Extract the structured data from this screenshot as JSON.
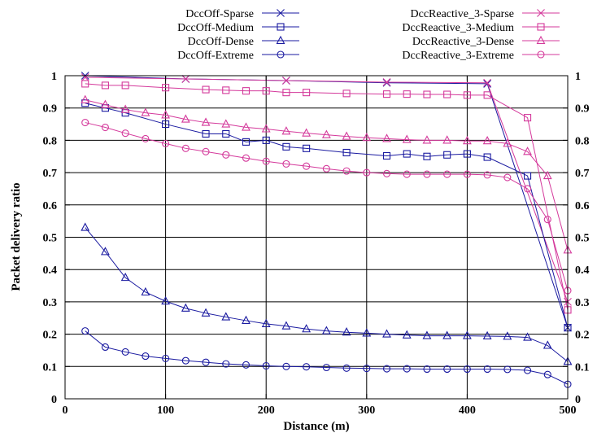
{
  "chart_data": {
    "type": "line",
    "title": "",
    "xlabel": "Distance (m)",
    "ylabel": "Packet delivery ratio",
    "xlim": [
      0,
      500
    ],
    "ylim": [
      0,
      1
    ],
    "xticks": [
      "0",
      "100",
      "200",
      "300",
      "400",
      "500"
    ],
    "xtick_values": [
      0,
      100,
      200,
      300,
      400,
      500
    ],
    "yticks": [
      "0",
      "0.1",
      "0.2",
      "0.3",
      "0.4",
      "0.5",
      "0.6",
      "0.7",
      "0.8",
      "0.9",
      "1"
    ],
    "ytick_values": [
      0,
      0.1,
      0.2,
      0.3,
      0.4,
      0.5,
      0.6,
      0.7,
      0.8,
      0.9,
      1
    ],
    "grid": true,
    "legend_position": "top, two columns, outside plot",
    "colors": {
      "DccOff": "#1a1aa0",
      "DccReactive_3": "#d4399b"
    },
    "series": [
      {
        "name": "DccOff-Sparse",
        "color": "#1a1aa0",
        "marker": "x",
        "x": [
          20,
          120,
          220,
          320,
          420,
          500
        ],
        "y": [
          1.0,
          0.99,
          0.985,
          0.978,
          0.975,
          0.22
        ]
      },
      {
        "name": "DccReactive_3-Sparse",
        "color": "#d4399b",
        "marker": "x",
        "x": [
          20,
          120,
          220,
          320,
          420,
          500
        ],
        "y": [
          0.995,
          0.99,
          0.985,
          0.98,
          0.978,
          0.3
        ]
      },
      {
        "name": "DccOff-Medium",
        "color": "#1a1aa0",
        "marker": "square",
        "x": [
          20,
          40,
          60,
          100,
          140,
          160,
          180,
          200,
          220,
          240,
          280,
          320,
          340,
          360,
          380,
          400,
          420,
          460,
          500
        ],
        "y": [
          0.915,
          0.9,
          0.885,
          0.85,
          0.82,
          0.82,
          0.795,
          0.8,
          0.78,
          0.775,
          0.762,
          0.752,
          0.758,
          0.75,
          0.755,
          0.758,
          0.748,
          0.69,
          0.22
        ]
      },
      {
        "name": "DccReactive_3-Medium",
        "color": "#d4399b",
        "marker": "square",
        "x": [
          20,
          40,
          60,
          100,
          140,
          160,
          180,
          200,
          220,
          240,
          280,
          320,
          340,
          360,
          380,
          400,
          420,
          460,
          500
        ],
        "y": [
          0.975,
          0.97,
          0.97,
          0.963,
          0.957,
          0.955,
          0.953,
          0.953,
          0.948,
          0.948,
          0.945,
          0.943,
          0.943,
          0.942,
          0.942,
          0.94,
          0.94,
          0.87,
          0.275
        ]
      },
      {
        "name": "DccOff-Dense",
        "color": "#1a1aa0",
        "marker": "triangle",
        "x": [
          20,
          40,
          60,
          80,
          100,
          120,
          140,
          160,
          180,
          200,
          220,
          240,
          260,
          280,
          300,
          320,
          340,
          360,
          380,
          400,
          420,
          440,
          460,
          480,
          500
        ],
        "y": [
          0.53,
          0.455,
          0.375,
          0.33,
          0.302,
          0.28,
          0.265,
          0.253,
          0.242,
          0.232,
          0.225,
          0.216,
          0.21,
          0.206,
          0.203,
          0.2,
          0.197,
          0.195,
          0.195,
          0.195,
          0.194,
          0.193,
          0.19,
          0.165,
          0.115
        ]
      },
      {
        "name": "DccReactive_3-Dense",
        "color": "#d4399b",
        "marker": "triangle",
        "x": [
          20,
          40,
          60,
          80,
          100,
          120,
          140,
          160,
          180,
          200,
          220,
          240,
          260,
          280,
          300,
          320,
          340,
          360,
          380,
          400,
          420,
          440,
          460,
          480,
          500
        ],
        "y": [
          0.925,
          0.91,
          0.895,
          0.885,
          0.878,
          0.865,
          0.855,
          0.85,
          0.84,
          0.835,
          0.828,
          0.822,
          0.817,
          0.812,
          0.808,
          0.805,
          0.802,
          0.8,
          0.8,
          0.798,
          0.798,
          0.79,
          0.765,
          0.69,
          0.46
        ]
      },
      {
        "name": "DccOff-Extreme",
        "color": "#1a1aa0",
        "marker": "circle",
        "x": [
          20,
          40,
          60,
          80,
          100,
          120,
          140,
          160,
          180,
          200,
          220,
          240,
          260,
          280,
          300,
          320,
          340,
          360,
          380,
          400,
          420,
          440,
          460,
          480,
          500
        ],
        "y": [
          0.21,
          0.16,
          0.145,
          0.132,
          0.125,
          0.118,
          0.113,
          0.108,
          0.105,
          0.102,
          0.1,
          0.099,
          0.097,
          0.095,
          0.094,
          0.093,
          0.093,
          0.092,
          0.092,
          0.092,
          0.092,
          0.091,
          0.088,
          0.075,
          0.045
        ]
      },
      {
        "name": "DccReactive_3-Extreme",
        "color": "#d4399b",
        "marker": "circle",
        "x": [
          20,
          40,
          60,
          80,
          100,
          120,
          140,
          160,
          180,
          200,
          220,
          240,
          260,
          280,
          300,
          320,
          340,
          360,
          380,
          400,
          420,
          440,
          460,
          480,
          500
        ],
        "y": [
          0.855,
          0.84,
          0.822,
          0.805,
          0.79,
          0.775,
          0.765,
          0.755,
          0.745,
          0.735,
          0.727,
          0.72,
          0.712,
          0.705,
          0.7,
          0.697,
          0.695,
          0.695,
          0.695,
          0.695,
          0.693,
          0.685,
          0.65,
          0.555,
          0.335
        ]
      }
    ]
  }
}
